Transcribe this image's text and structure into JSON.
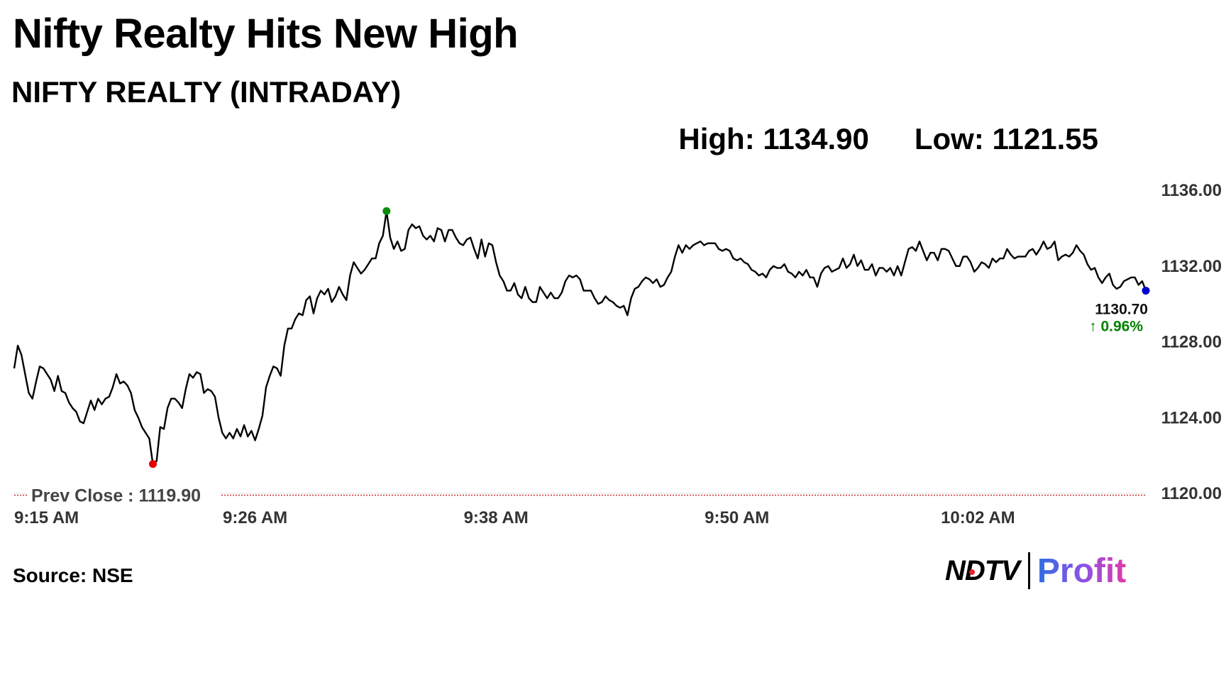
{
  "header": {
    "headline": "Nifty Realty Hits New High",
    "subtitle": "NIFTY REALTY (INTRADAY)"
  },
  "stats": {
    "high_label": "High: 1134.90",
    "low_label": "Low: 1121.55"
  },
  "footer": {
    "source": "Source: NSE",
    "logo_left": "NDTV",
    "logo_right": "Profit"
  },
  "colors": {
    "line": "#000000",
    "high_marker": "#0a8a0a",
    "low_marker": "#e00000",
    "last_marker": "#0000cc",
    "change_positive": "#008000",
    "prev_close_line": "#cc3333",
    "axis_text": "#333333"
  },
  "chart_data": {
    "type": "line",
    "series": [
      {
        "values": [
          1126.6,
          1127.8,
          1127.3,
          1126.3,
          1125.3,
          1125.0,
          1125.9,
          1126.7,
          1126.6,
          1126.3,
          1126.0,
          1125.4,
          1126.2,
          1125.4,
          1125.3,
          1124.8,
          1124.5,
          1124.3,
          1123.8,
          1123.7,
          1124.3,
          1124.9,
          1124.4,
          1125.0,
          1124.7,
          1125.0,
          1125.1,
          1125.6,
          1126.3,
          1125.8,
          1125.9,
          1125.7,
          1125.3,
          1124.4,
          1124.0,
          1123.5,
          1123.2,
          1122.9,
          1121.55,
          1121.7,
          1123.5,
          1123.4,
          1124.5,
          1125.0,
          1125.0,
          1124.8,
          1124.5,
          1125.5,
          1126.3,
          1126.1,
          1126.4,
          1126.3,
          1125.3,
          1125.5,
          1125.4,
          1125.1,
          1124.0,
          1123.2,
          1122.9,
          1123.2,
          1122.9,
          1123.4,
          1123.0,
          1123.6,
          1123.0,
          1123.3,
          1122.8,
          1123.4,
          1124.1,
          1125.6,
          1126.2,
          1126.7,
          1126.6,
          1126.2,
          1127.8,
          1128.7,
          1128.7,
          1129.2,
          1129.5,
          1129.4,
          1130.2,
          1130.4,
          1129.5,
          1130.3,
          1130.7,
          1130.5,
          1130.8,
          1130.1,
          1130.4,
          1130.9,
          1130.5,
          1130.2,
          1131.5,
          1132.2,
          1131.9,
          1131.6,
          1131.8,
          1132.1,
          1132.4,
          1132.4,
          1133.2,
          1133.6,
          1134.9,
          1133.5,
          1132.9,
          1133.3,
          1132.8,
          1132.9,
          1133.9,
          1134.2,
          1134.0,
          1134.1,
          1133.6,
          1133.4,
          1133.6,
          1133.3,
          1134.0,
          1133.9,
          1133.3,
          1133.9,
          1133.9,
          1133.5,
          1133.2,
          1133.1,
          1133.4,
          1133.5,
          1132.9,
          1132.4,
          1133.4,
          1132.5,
          1133.2,
          1133.1,
          1132.2,
          1131.5,
          1131.2,
          1130.7,
          1130.7,
          1131.1,
          1130.5,
          1130.3,
          1130.9,
          1130.3,
          1130.1,
          1130.1,
          1130.9,
          1130.6,
          1130.3,
          1130.6,
          1130.3,
          1130.3,
          1130.6,
          1131.2,
          1131.5,
          1131.4,
          1131.5,
          1131.3,
          1130.7,
          1130.7,
          1130.7,
          1130.3,
          1130.0,
          1130.1,
          1130.4,
          1130.2,
          1130.1,
          1129.9,
          1129.8,
          1129.9,
          1129.4,
          1130.3,
          1130.8,
          1130.9,
          1131.2,
          1131.4,
          1131.3,
          1131.1,
          1131.3,
          1130.9,
          1131.0,
          1131.4,
          1131.7,
          1132.5,
          1133.1,
          1132.7,
          1133.1,
          1132.9,
          1133.1,
          1133.2,
          1133.3,
          1133.1,
          1133.2,
          1133.2,
          1133.2,
          1132.9,
          1132.8,
          1132.9,
          1132.8,
          1132.4,
          1132.3,
          1132.4,
          1132.2,
          1132.1,
          1131.8,
          1131.7,
          1131.5,
          1131.6,
          1131.4,
          1131.8,
          1132.0,
          1131.9,
          1131.9,
          1132.1,
          1131.7,
          1131.6,
          1131.4,
          1131.7,
          1131.5,
          1131.8,
          1131.4,
          1131.4,
          1130.9,
          1131.6,
          1131.9,
          1132.0,
          1131.7,
          1131.8,
          1131.9,
          1132.4,
          1131.9,
          1132.1,
          1132.6,
          1132.0,
          1132.3,
          1131.8,
          1131.8,
          1132.1,
          1131.5,
          1131.9,
          1131.9,
          1131.7,
          1131.9,
          1131.5,
          1132.0,
          1131.5,
          1132.2,
          1132.9,
          1133.0,
          1132.8,
          1133.3,
          1132.8,
          1132.3,
          1132.7,
          1132.7,
          1132.3,
          1132.9,
          1132.9,
          1132.8,
          1132.4,
          1132.0,
          1132.0,
          1132.5,
          1132.5,
          1132.2,
          1131.7,
          1131.9,
          1132.2,
          1132.1,
          1131.9,
          1132.4,
          1132.2,
          1132.4,
          1132.4,
          1132.9,
          1132.6,
          1132.4,
          1132.5,
          1132.5,
          1132.5,
          1132.8,
          1132.9,
          1132.6,
          1132.9,
          1133.3,
          1132.9,
          1133.0,
          1133.3,
          1132.3,
          1132.5,
          1132.6,
          1132.5,
          1132.7,
          1133.1,
          1132.8,
          1132.6,
          1132.1,
          1131.8,
          1131.9,
          1131.4,
          1131.1,
          1131.4,
          1131.6,
          1131.0,
          1130.8,
          1130.9,
          1131.2,
          1131.3,
          1131.4,
          1131.4,
          1131.0,
          1131.2,
          1130.7
        ]
      }
    ],
    "x_ticks": [
      "9:15 AM",
      "9:26 AM",
      "9:38 AM",
      "9:50 AM",
      "10:02 AM"
    ],
    "x_tick_index": [
      0,
      66,
      132,
      198,
      264
    ],
    "y_ticks": [
      "1136.00",
      "1132.00",
      "1128.00",
      "1124.00",
      "1120.00"
    ],
    "y_tick_values": [
      1136,
      1132,
      1128,
      1124,
      1120
    ],
    "ylim": [
      1120,
      1136
    ],
    "prev_close": 1119.9,
    "prev_close_label": "Prev Close : 1119.90",
    "high": {
      "value": 1134.9,
      "index": 102
    },
    "low": {
      "value": 1121.55,
      "index": 38
    },
    "last": {
      "value": 1130.7,
      "label": "1130.70",
      "change_label": "↑ 0.96%"
    },
    "grid": false,
    "legend": "none"
  }
}
